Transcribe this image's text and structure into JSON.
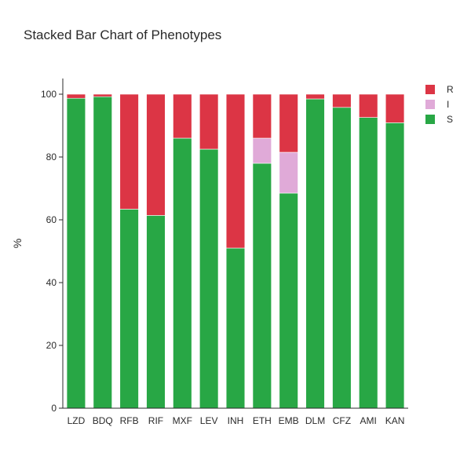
{
  "chart_data": {
    "type": "bar",
    "stacked": true,
    "title": "Stacked Bar Chart of Phenotypes",
    "xlabel": "",
    "ylabel": "%",
    "ylim": [
      0,
      105
    ],
    "yticks": [
      0,
      20,
      40,
      60,
      80,
      100
    ],
    "grid": false,
    "legend_position": "top-right",
    "categories": [
      "LZD",
      "BDQ",
      "RFB",
      "RIF",
      "MXF",
      "LEV",
      "INH",
      "ETH",
      "EMB",
      "DLM",
      "CFZ",
      "AMI",
      "KAN"
    ],
    "series": [
      {
        "name": "S",
        "color": "#28a745",
        "values": [
          98.7,
          99.2,
          63.4,
          61.4,
          86.0,
          82.5,
          51.0,
          78.0,
          68.5,
          98.5,
          95.8,
          92.6,
          90.9
        ]
      },
      {
        "name": "I",
        "color": "#e0aad8",
        "values": [
          0,
          0,
          0,
          0,
          0,
          0,
          0,
          8.0,
          13.0,
          0,
          0,
          0,
          0
        ]
      },
      {
        "name": "R",
        "color": "#dc3545",
        "values": [
          1.3,
          0.8,
          36.6,
          38.6,
          14.0,
          17.5,
          49.0,
          14.0,
          18.5,
          1.5,
          4.2,
          7.4,
          9.1
        ]
      }
    ],
    "legend": [
      {
        "name": "R",
        "color": "#dc3545"
      },
      {
        "name": "I",
        "color": "#e0aad8"
      },
      {
        "name": "S",
        "color": "#28a745"
      }
    ]
  }
}
